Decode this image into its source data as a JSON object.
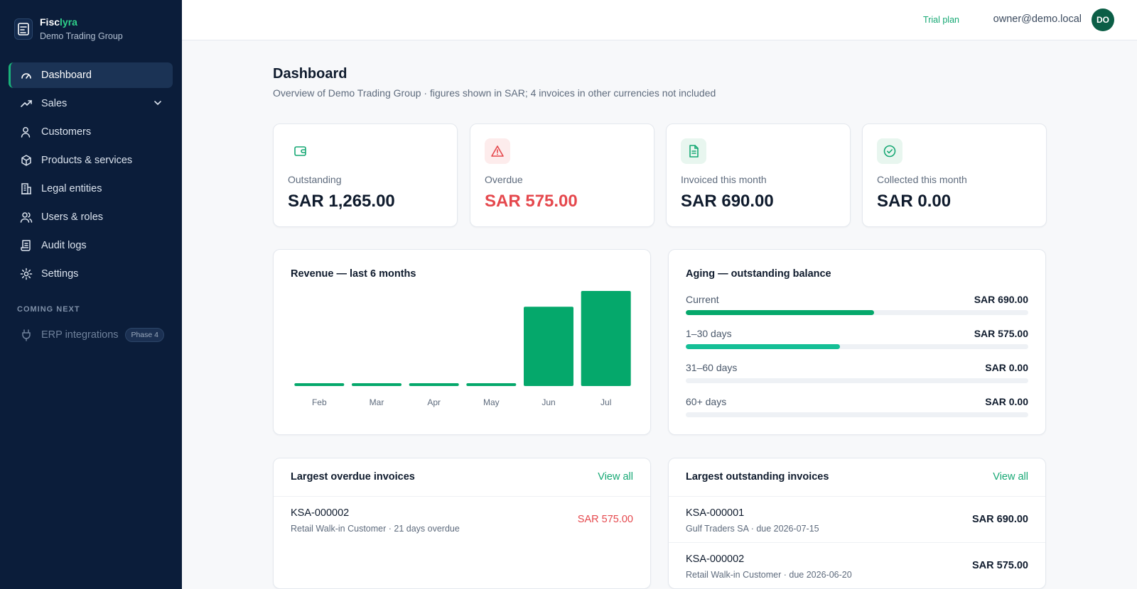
{
  "brand": {
    "name_part1": "Fisc",
    "name_part2": "lyra",
    "org": "Demo Trading Group"
  },
  "sidebar": {
    "items": [
      {
        "label": "Dashboard",
        "icon": "gauge-icon",
        "active": true
      },
      {
        "label": "Sales",
        "icon": "trending-up-icon"
      },
      {
        "label": "Customers",
        "icon": "user-icon"
      },
      {
        "label": "Products & services",
        "icon": "box-icon"
      },
      {
        "label": "Legal entities",
        "icon": "building-icon"
      },
      {
        "label": "Users & roles",
        "icon": "users-icon"
      },
      {
        "label": "Audit logs",
        "icon": "scroll-icon"
      },
      {
        "label": "Settings",
        "icon": "gear-icon"
      }
    ],
    "section_label": "COMING NEXT",
    "coming_next": {
      "label": "ERP integrations",
      "badge": "Phase 4",
      "icon": "plug-icon"
    }
  },
  "header": {
    "plan": "Trial plan",
    "email": "owner@demo.local",
    "avatar_initials": "DO"
  },
  "page": {
    "title": "Dashboard",
    "subtitle": "Overview of Demo Trading Group · figures shown in SAR; 4 invoices in other currencies not included"
  },
  "kpis": [
    {
      "label": "Outstanding",
      "value": "SAR 1,265.00",
      "icon": "wallet-icon",
      "color": "#16a874"
    },
    {
      "label": "Overdue",
      "value": "SAR 575.00",
      "icon": "warning-icon",
      "color": "#e5484d"
    },
    {
      "label": "Invoiced this month",
      "value": "SAR 690.00",
      "icon": "document-icon",
      "color": "#16a874"
    },
    {
      "label": "Collected this month",
      "value": "SAR 0.00",
      "icon": "check-circle-icon",
      "color": "#16a874"
    }
  ],
  "revenue": {
    "title": "Revenue — last 6 months"
  },
  "chart_data": {
    "type": "bar",
    "title": "Revenue — last 6 months",
    "categories": [
      "Feb",
      "Mar",
      "Apr",
      "May",
      "Jun",
      "Jul"
    ],
    "values": [
      0,
      0,
      0,
      0,
      575,
      690
    ],
    "ylim": [
      0,
      690
    ],
    "grid": false,
    "color": "#05a86b"
  },
  "aging": {
    "title": "Aging — outstanding balance",
    "rows": [
      {
        "label": "Current",
        "value": "SAR 690.00",
        "fraction": 0.55,
        "color": "#05a86b"
      },
      {
        "label": "1–30 days",
        "value": "SAR 575.00",
        "fraction": 0.45,
        "color": "#15bf96"
      },
      {
        "label": "31–60 days",
        "value": "SAR 0.00",
        "fraction": 0,
        "color": "#f0a23b"
      },
      {
        "label": "60+ days",
        "value": "SAR 0.00",
        "fraction": 0,
        "color": "#e5484d"
      }
    ]
  },
  "overdue_list": {
    "title": "Largest overdue invoices",
    "view_all": "View all",
    "rows": [
      {
        "number": "KSA-000002",
        "meta": "Retail Walk-in Customer · 21 days overdue",
        "amount": "SAR 575.00"
      }
    ]
  },
  "outstanding_list": {
    "title": "Largest outstanding invoices",
    "view_all": "View all",
    "rows": [
      {
        "number": "KSA-000001",
        "meta": "Gulf Traders SA · due 2026-07-15",
        "amount": "SAR 690.00"
      },
      {
        "number": "KSA-000002",
        "meta": "Retail Walk-in Customer · due 2026-06-20",
        "amount": "SAR 575.00"
      }
    ]
  }
}
